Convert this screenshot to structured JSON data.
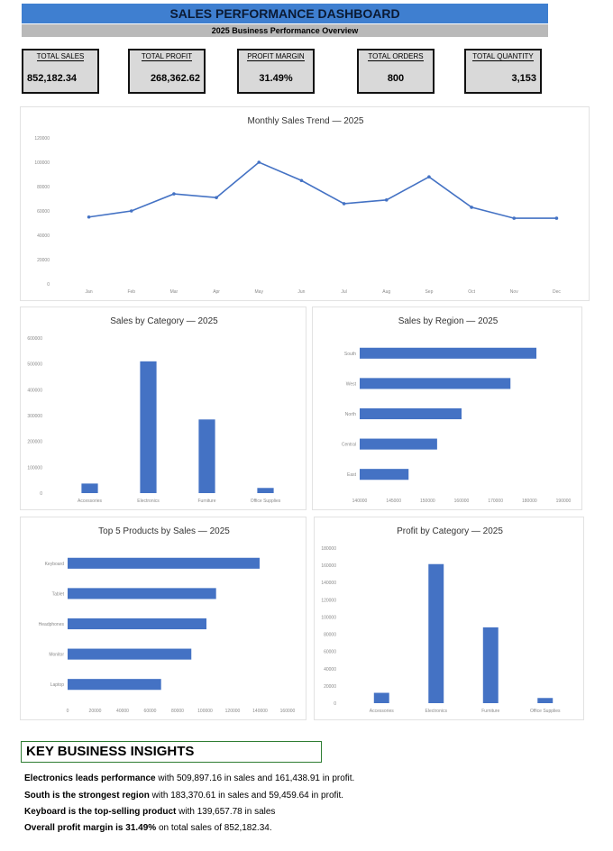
{
  "header": {
    "title": "SALES PERFORMANCE DASHBOARD",
    "subtitle": "2025 Business Performance Overview"
  },
  "kpis": [
    {
      "label": "TOTAL SALES",
      "value": "852,182.34"
    },
    {
      "label": "TOTAL PROFIT",
      "value": "268,362.62"
    },
    {
      "label": "PROFIT MARGIN",
      "value": "31.49%"
    },
    {
      "label": "TOTAL ORDERS",
      "value": "800"
    },
    {
      "label": "TOTAL QUANTITY",
      "value": "3,153"
    }
  ],
  "chart_data": [
    {
      "type": "line",
      "title": "Monthly Sales Trend  — 2025",
      "categories": [
        "Jan",
        "Feb",
        "Mar",
        "Apr",
        "May",
        "Jun",
        "Jul",
        "Aug",
        "Sep",
        "Oct",
        "Nov",
        "Dec"
      ],
      "values": [
        55000,
        60000,
        74000,
        71000,
        100000,
        85000,
        66000,
        69000,
        88000,
        63000,
        54000,
        54000
      ],
      "ylim": [
        0,
        120000
      ],
      "yticks": [
        "0",
        "20000",
        "40000",
        "60000",
        "80000",
        "100000",
        "120000"
      ],
      "color": "#4472c4",
      "grid": false
    },
    {
      "type": "bar",
      "title": "Sales by Category  — 2025",
      "categories": [
        "Accessories",
        "Electronics",
        "Furniture",
        "Office Supplies"
      ],
      "values": [
        37000,
        509897.16,
        285000,
        20000
      ],
      "ylim": [
        0,
        600000
      ],
      "yticks": [
        "0",
        "100000",
        "200000",
        "300000",
        "400000",
        "500000",
        "600000"
      ],
      "color": "#4472c4"
    },
    {
      "type": "bar",
      "orientation": "horizontal",
      "title": "Sales by Region  — 2025",
      "categories": [
        "South",
        "West",
        "North",
        "Central",
        "East"
      ],
      "values": [
        183370.61,
        177000,
        165000,
        159000,
        152000
      ],
      "xlim": [
        140000,
        190000
      ],
      "xticks": [
        "140000",
        "145000",
        "150000",
        "160000",
        "170000",
        "180000",
        "190000"
      ],
      "color": "#4472c4"
    },
    {
      "type": "bar",
      "orientation": "horizontal",
      "title": "Top 5 Products by Sales  — 2025",
      "categories": [
        "Keyboard",
        "Tablet",
        "Headphones",
        "Monitor",
        "Laptop"
      ],
      "values": [
        139657.78,
        108000,
        101000,
        90000,
        68000
      ],
      "xlim": [
        0,
        160000
      ],
      "xticks": [
        "0",
        "20000",
        "40000",
        "60000",
        "80000",
        "100000",
        "120000",
        "140000",
        "160000"
      ],
      "color": "#4472c4"
    },
    {
      "type": "bar",
      "title": "Profit by Category  — 2025",
      "categories": [
        "Accessories",
        "Electronics",
        "Furniture",
        "Office Supplies"
      ],
      "values": [
        12000,
        161438.91,
        88000,
        6000
      ],
      "ylim": [
        0,
        180000
      ],
      "yticks": [
        "0",
        "20000",
        "40000",
        "60000",
        "80000",
        "100000",
        "120000",
        "140000",
        "160000",
        "180000"
      ],
      "color": "#4472c4"
    }
  ],
  "insights": {
    "title": "KEY BUSINESS INSIGHTS",
    "lines": [
      {
        "bold": "Electronics leads performance",
        "rest": " with 509,897.16 in sales and 161,438.91 in profit."
      },
      {
        "bold": "South is the strongest region",
        "rest": " with 183,370.61 in sales and 59,459.64 in profit."
      },
      {
        "bold": "Keyboard is the top-selling product",
        "rest": " with 139,657.78 in sales"
      },
      {
        "bold": "Overall profit margin is 31.49%",
        "rest": " on total sales of 852,182.34."
      }
    ]
  }
}
